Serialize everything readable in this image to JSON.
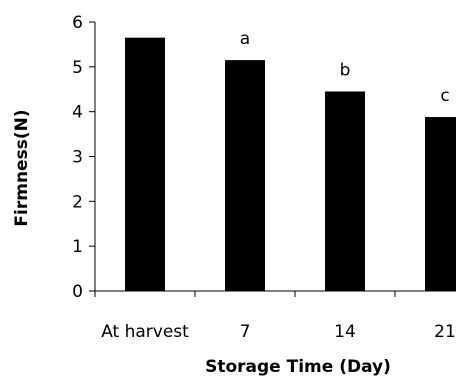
{
  "chart_data": {
    "type": "bar",
    "categories": [
      "At harvest",
      "7",
      "14",
      "21"
    ],
    "values": [
      5.65,
      5.15,
      4.45,
      3.88
    ],
    "annotations": [
      "",
      "a",
      "b",
      "c"
    ],
    "title": "",
    "xlabel": "Storage Time (Day)",
    "ylabel": "Firmness(N)",
    "ylim": [
      0,
      6
    ],
    "yticks": [
      "0",
      "1",
      "2",
      "3",
      "4",
      "5",
      "6"
    ],
    "grid": false,
    "legend": "none",
    "bar_color": "#000000",
    "axis_color": "#000000"
  }
}
